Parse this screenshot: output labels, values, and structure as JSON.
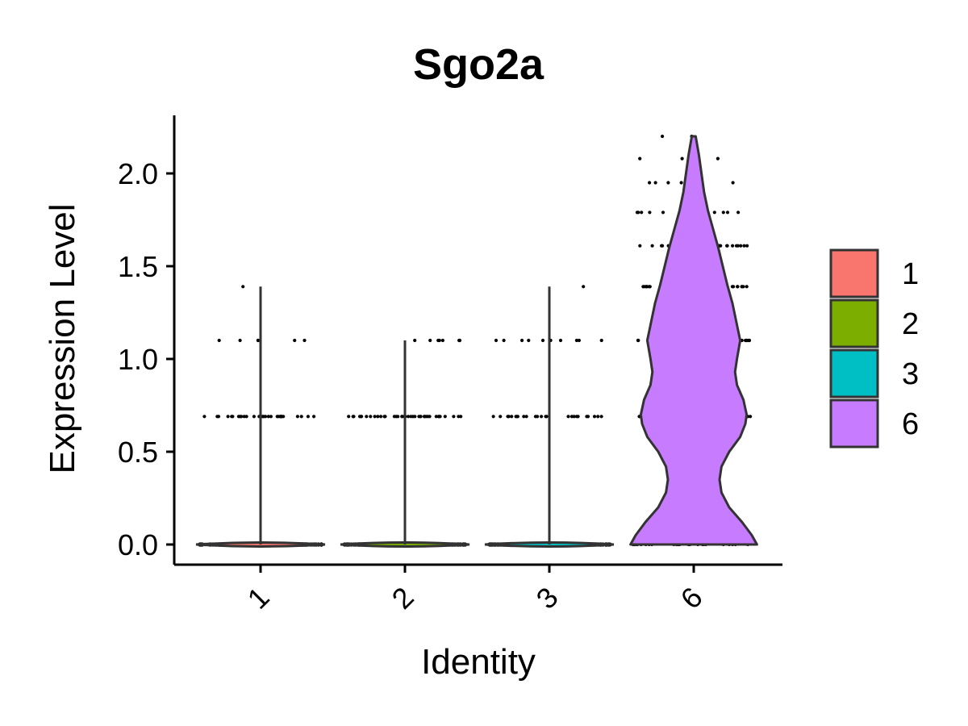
{
  "chart_data": {
    "type": "violin",
    "title": "Sgo2a",
    "xlabel": "Identity",
    "ylabel": "Expression Level",
    "categories": [
      "1",
      "2",
      "3",
      "6"
    ],
    "ylim": [
      -0.12,
      2.3
    ],
    "yticks": [
      0.0,
      0.5,
      1.0,
      1.5,
      2.0
    ],
    "ytick_labels": [
      "0.0",
      "0.5",
      "1.0",
      "1.5",
      "2.0"
    ],
    "grid": false,
    "legend_position": "right",
    "legend": [
      {
        "label": "1",
        "color": "#F8766D"
      },
      {
        "label": "2",
        "color": "#7CAE00"
      },
      {
        "label": "3",
        "color": "#00BFC4"
      },
      {
        "label": "6",
        "color": "#C77CFF"
      }
    ],
    "series": [
      {
        "category": "1",
        "color": "#F8766D",
        "max": 1.39,
        "violin_profile": [
          [
            0.0,
            1.0
          ],
          [
            0.02,
            0.01
          ],
          [
            1.39,
            0.0
          ]
        ],
        "jitter_levels": [
          {
            "y": 0.0,
            "points": 120
          },
          {
            "y": 0.69,
            "points": 30
          },
          {
            "y": 1.1,
            "points": 6
          },
          {
            "y": 1.39,
            "points": 1
          }
        ]
      },
      {
        "category": "2",
        "color": "#7CAE00",
        "max": 1.1,
        "violin_profile": [
          [
            0.0,
            1.0
          ],
          [
            0.02,
            0.01
          ],
          [
            1.1,
            0.0
          ]
        ],
        "jitter_levels": [
          {
            "y": 0.0,
            "points": 120
          },
          {
            "y": 0.69,
            "points": 40
          },
          {
            "y": 1.1,
            "points": 8
          }
        ]
      },
      {
        "category": "3",
        "color": "#00BFC4",
        "max": 1.39,
        "violin_profile": [
          [
            0.0,
            1.0
          ],
          [
            0.02,
            0.01
          ],
          [
            1.39,
            0.0
          ]
        ],
        "jitter_levels": [
          {
            "y": 0.0,
            "points": 120
          },
          {
            "y": 0.69,
            "points": 25
          },
          {
            "y": 1.1,
            "points": 10
          },
          {
            "y": 1.39,
            "points": 1
          }
        ]
      },
      {
        "category": "6",
        "color": "#C77CFF",
        "max": 2.2,
        "violin_profile": [
          [
            0.0,
            0.98
          ],
          [
            0.05,
            0.9
          ],
          [
            0.12,
            0.75
          ],
          [
            0.2,
            0.55
          ],
          [
            0.28,
            0.43
          ],
          [
            0.35,
            0.4
          ],
          [
            0.42,
            0.43
          ],
          [
            0.5,
            0.55
          ],
          [
            0.58,
            0.72
          ],
          [
            0.65,
            0.8
          ],
          [
            0.7,
            0.82
          ],
          [
            0.78,
            0.77
          ],
          [
            0.86,
            0.67
          ],
          [
            0.93,
            0.64
          ],
          [
            1.0,
            0.67
          ],
          [
            1.1,
            0.72
          ],
          [
            1.2,
            0.66
          ],
          [
            1.3,
            0.6
          ],
          [
            1.4,
            0.52
          ],
          [
            1.5,
            0.45
          ],
          [
            1.6,
            0.38
          ],
          [
            1.7,
            0.3
          ],
          [
            1.8,
            0.22
          ],
          [
            1.9,
            0.16
          ],
          [
            2.0,
            0.12
          ],
          [
            2.1,
            0.08
          ],
          [
            2.2,
            0.03
          ]
        ],
        "jitter_levels": [
          {
            "y": 0.0,
            "points": 25
          },
          {
            "y": 0.69,
            "points": 70
          },
          {
            "y": 1.1,
            "points": 55
          },
          {
            "y": 1.39,
            "points": 40
          },
          {
            "y": 1.61,
            "points": 25
          },
          {
            "y": 1.79,
            "points": 12
          },
          {
            "y": 1.95,
            "points": 6
          },
          {
            "y": 2.08,
            "points": 3
          },
          {
            "y": 2.2,
            "points": 2
          }
        ]
      }
    ]
  }
}
